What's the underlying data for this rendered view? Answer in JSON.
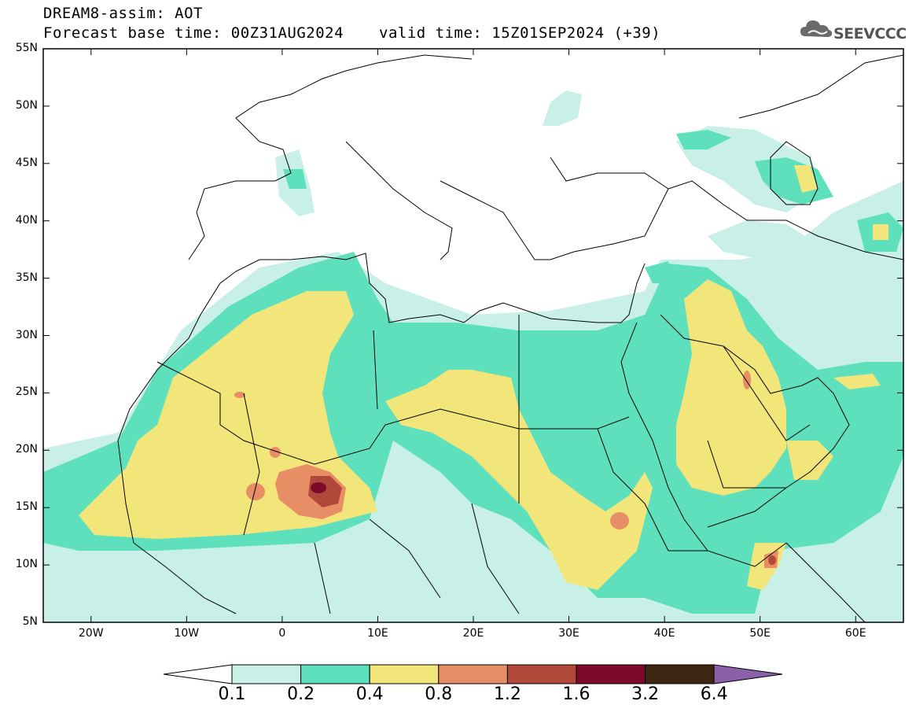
{
  "title": {
    "line1": "DREAM8-assim: AOT",
    "line2": "Forecast base time: 00Z31AUG2024",
    "valid": "valid time: 15Z01SEP2024 (+39)"
  },
  "logo": {
    "text": "SEEVCCC",
    "icon": "cloud-icon"
  },
  "map": {
    "lat_labels": [
      "55N",
      "50N",
      "45N",
      "40N",
      "35N",
      "30N",
      "25N",
      "20N",
      "15N",
      "10N",
      "5N"
    ],
    "lon_labels": [
      "20W",
      "10W",
      "0",
      "10E",
      "20E",
      "30E",
      "40E",
      "50E",
      "60E"
    ],
    "lon_range": [
      -25,
      65
    ],
    "lat_range": [
      5,
      55
    ]
  },
  "colorbar": {
    "labels": [
      "0.1",
      "0.2",
      "0.4",
      "0.8",
      "1.2",
      "1.6",
      "3.2",
      "6.4"
    ],
    "colors": [
      "#c8f0e6",
      "#5ee0bc",
      "#f2e57a",
      "#e88e66",
      "#b0493a",
      "#7d0a2a",
      "#3e2512",
      "#8a60a8"
    ]
  }
}
